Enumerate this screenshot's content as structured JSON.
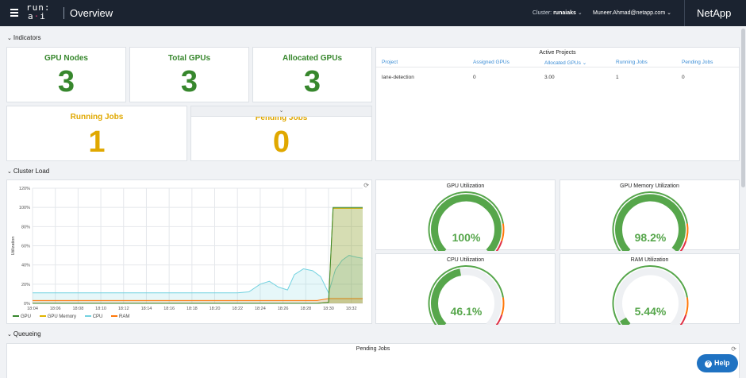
{
  "header": {
    "logo_line1": "run:",
    "logo_line2_a": "a",
    "logo_line2_b": "i",
    "title": "Overview",
    "cluster_label": "Cluster:",
    "cluster_value": "runaiaks",
    "user": "Muneer.Ahmad@netapp.com",
    "brand": "NetApp"
  },
  "sections": {
    "indicators": "Indicators",
    "cluster_load": "Cluster Load",
    "queueing": "Queueing"
  },
  "indicators": {
    "gpu_nodes": {
      "label": "GPU Nodes",
      "value": "3"
    },
    "total_gpus": {
      "label": "Total GPUs",
      "value": "3"
    },
    "allocated_gpus": {
      "label": "Allocated GPUs",
      "value": "3"
    },
    "running_jobs": {
      "label": "Running Jobs",
      "value": "1"
    },
    "pending_jobs": {
      "label": "Pending Jobs",
      "value": "0"
    }
  },
  "active_projects": {
    "title": "Active Projects",
    "columns": [
      "Project",
      "Assigned GPUs",
      "Allocated GPUs",
      "Running Jobs",
      "Pending Jobs"
    ],
    "rows": [
      [
        "lane-detection",
        "0",
        "3.00",
        "1",
        "0"
      ]
    ]
  },
  "gauges": {
    "gpu": {
      "title": "GPU Utilization",
      "value": 100,
      "display": "100%"
    },
    "gpu_mem": {
      "title": "GPU Memory Utilization",
      "value": 98.2,
      "display": "98.2%"
    },
    "cpu": {
      "title": "CPU Utilization",
      "value": 46.1,
      "display": "46.1%"
    },
    "ram": {
      "title": "RAM Utilization",
      "value": 5.44,
      "display": "5.44%"
    }
  },
  "colors": {
    "green": "#56a64b",
    "orange": "#ff780a",
    "red": "#e02f44",
    "track": "#eef0f3",
    "gpu": "#37872d",
    "gpu_memory": "#e0b400",
    "cpu": "#73d2e0",
    "ram": "#ff780a"
  },
  "chart_data": {
    "type": "line",
    "ylabel": "Utilization",
    "yticks": [
      "0%",
      "20%",
      "40%",
      "60%",
      "80%",
      "100%",
      "120%"
    ],
    "ylim": [
      0,
      120
    ],
    "x": [
      "18:04",
      "18:06",
      "18:08",
      "18:10",
      "18:12",
      "18:14",
      "18:16",
      "18:18",
      "18:20",
      "18:22",
      "18:24",
      "18:26",
      "18:28",
      "18:30",
      "18:32"
    ],
    "xlim": [
      "18:04",
      "18:33"
    ],
    "legend_position": "bottom-left",
    "series": [
      {
        "name": "GPU",
        "points": [
          [
            "18:04",
            0
          ],
          [
            "18:29",
            0
          ],
          [
            "18:30",
            1
          ],
          [
            "18:30.4",
            100
          ],
          [
            "18:33",
            100
          ]
        ]
      },
      {
        "name": "GPU Memory",
        "points": [
          [
            "18:04",
            0
          ],
          [
            "18:29",
            0
          ],
          [
            "18:30",
            1
          ],
          [
            "18:30.4",
            99
          ],
          [
            "18:33",
            99
          ]
        ]
      },
      {
        "name": "CPU",
        "points": [
          [
            "18:04",
            11
          ],
          [
            "18:22",
            11
          ],
          [
            "18:23",
            12
          ],
          [
            "18:24",
            20
          ],
          [
            "18:24.8",
            23
          ],
          [
            "18:25.6",
            17
          ],
          [
            "18:26.4",
            14
          ],
          [
            "18:27",
            30
          ],
          [
            "18:27.8",
            36
          ],
          [
            "18:28.6",
            34
          ],
          [
            "18:29.3",
            28
          ],
          [
            "18:30",
            11
          ],
          [
            "18:30.6",
            35
          ],
          [
            "18:31.2",
            45
          ],
          [
            "18:31.8",
            50
          ],
          [
            "18:32.5",
            48
          ],
          [
            "18:33",
            47
          ]
        ]
      },
      {
        "name": "RAM",
        "points": [
          [
            "18:04",
            3
          ],
          [
            "18:29",
            3
          ],
          [
            "18:30",
            5
          ],
          [
            "18:33",
            5
          ]
        ]
      }
    ]
  },
  "queueing": {
    "pending_jobs_title": "Pending Jobs"
  },
  "help": {
    "label": "Help",
    "glyph": "?"
  }
}
